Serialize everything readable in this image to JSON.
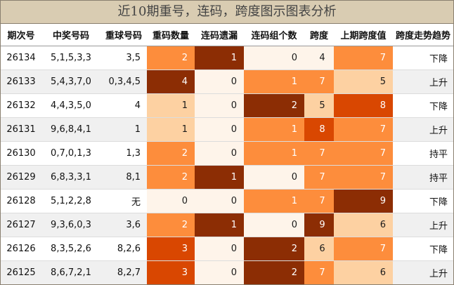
{
  "title": "近10期重号，连码，跨度图示图表分析",
  "headers": [
    "期次号",
    "中奖号码",
    "重球号码",
    "重码数量",
    "连码遗漏",
    "连码组个数",
    "跨度",
    "上期跨度值",
    "跨度走势趋势"
  ],
  "colors": {
    "lightest": "#fef4ea",
    "light": "#fdd1a2",
    "mid": "#fd8d3c",
    "dark": "#d94701",
    "darkest": "#8c2d04",
    "header_bg": "#d9ccb2"
  },
  "rows": [
    {
      "period": "26134",
      "numbers": "5,1,5,3,3",
      "repeat_balls": "3,5",
      "repeat_count": "2",
      "consec_miss": "1",
      "consec_groups": "0",
      "span": "4",
      "prev_span": "7",
      "trend": "下降"
    },
    {
      "period": "26133",
      "numbers": "5,4,3,7,0",
      "repeat_balls": "0,3,4,5",
      "repeat_count": "4",
      "consec_miss": "0",
      "consec_groups": "1",
      "span": "7",
      "prev_span": "5",
      "trend": "上升"
    },
    {
      "period": "26132",
      "numbers": "4,4,3,5,0",
      "repeat_balls": "4",
      "repeat_count": "1",
      "consec_miss": "0",
      "consec_groups": "2",
      "span": "5",
      "prev_span": "8",
      "trend": "下降"
    },
    {
      "period": "26131",
      "numbers": "9,6,8,4,1",
      "repeat_balls": "1",
      "repeat_count": "1",
      "consec_miss": "0",
      "consec_groups": "1",
      "span": "8",
      "prev_span": "7",
      "trend": "上升"
    },
    {
      "period": "26130",
      "numbers": "0,7,0,1,3",
      "repeat_balls": "1,3",
      "repeat_count": "2",
      "consec_miss": "0",
      "consec_groups": "1",
      "span": "7",
      "prev_span": "7",
      "trend": "持平"
    },
    {
      "period": "26129",
      "numbers": "6,8,3,3,1",
      "repeat_balls": "8,1",
      "repeat_count": "2",
      "consec_miss": "1",
      "consec_groups": "0",
      "span": "7",
      "prev_span": "7",
      "trend": "持平"
    },
    {
      "period": "26128",
      "numbers": "5,1,2,2,8",
      "repeat_balls": "无",
      "repeat_count": "0",
      "consec_miss": "0",
      "consec_groups": "1",
      "span": "7",
      "prev_span": "9",
      "trend": "下降"
    },
    {
      "period": "26127",
      "numbers": "9,3,6,0,3",
      "repeat_balls": "3,6",
      "repeat_count": "2",
      "consec_miss": "1",
      "consec_groups": "0",
      "span": "9",
      "prev_span": "6",
      "trend": "上升"
    },
    {
      "period": "26126",
      "numbers": "8,3,5,2,6",
      "repeat_balls": "8,2,6",
      "repeat_count": "3",
      "consec_miss": "0",
      "consec_groups": "2",
      "span": "6",
      "prev_span": "7",
      "trend": "下降"
    },
    {
      "period": "26125",
      "numbers": "8,6,7,2,1",
      "repeat_balls": "8,2,7",
      "repeat_count": "3",
      "consec_miss": "0",
      "consec_groups": "2",
      "span": "7",
      "prev_span": "6",
      "trend": "上升"
    }
  ]
}
